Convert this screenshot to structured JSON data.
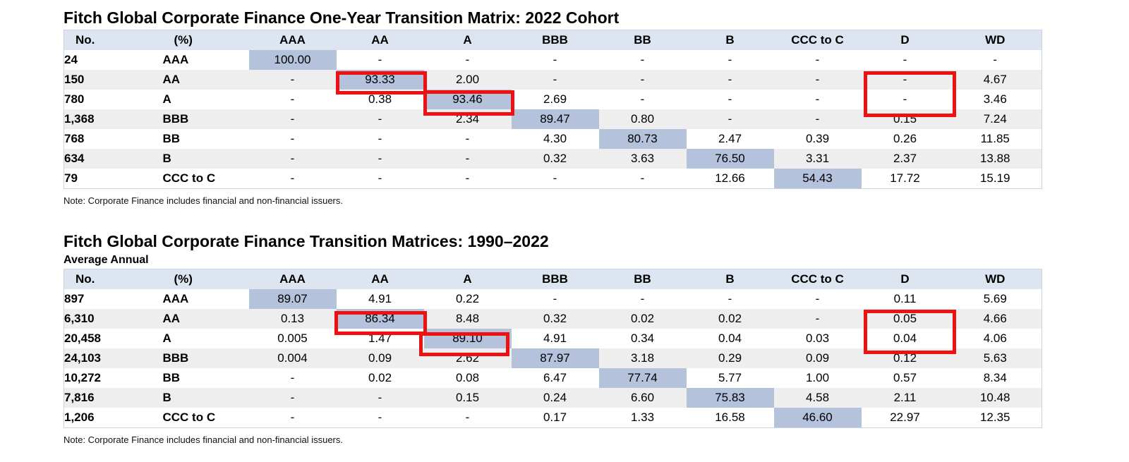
{
  "top": {
    "title": "Fitch Global Corporate Finance One-Year Transition Matrix: 2022 Cohort",
    "headers": [
      "No.",
      "(%)",
      "AAA",
      "AA",
      "A",
      "BBB",
      "BB",
      "B",
      "CCC to C",
      "D",
      "WD"
    ],
    "rows": [
      {
        "count": "24",
        "rating": "AAA",
        "values": [
          "100.00",
          "-",
          "-",
          "-",
          "-",
          "-",
          "-",
          "-",
          "-"
        ]
      },
      {
        "count": "150",
        "rating": "AA",
        "values": [
          "-",
          "93.33",
          "2.00",
          "-",
          "-",
          "-",
          "-",
          "-",
          "4.67"
        ]
      },
      {
        "count": "780",
        "rating": "A",
        "values": [
          "-",
          "0.38",
          "93.46",
          "2.69",
          "-",
          "-",
          "-",
          "-",
          "3.46"
        ]
      },
      {
        "count": "1,368",
        "rating": "BBB",
        "values": [
          "-",
          "-",
          "2.34",
          "89.47",
          "0.80",
          "-",
          "-",
          "0.15",
          "7.24"
        ]
      },
      {
        "count": "768",
        "rating": "BB",
        "values": [
          "-",
          "-",
          "-",
          "4.30",
          "80.73",
          "2.47",
          "0.39",
          "0.26",
          "11.85"
        ]
      },
      {
        "count": "634",
        "rating": "B",
        "values": [
          "-",
          "-",
          "-",
          "0.32",
          "3.63",
          "76.50",
          "3.31",
          "2.37",
          "13.88"
        ]
      },
      {
        "count": "79",
        "rating": "CCC to C",
        "values": [
          "-",
          "-",
          "-",
          "-",
          "-",
          "12.66",
          "54.43",
          "17.72",
          "15.19"
        ]
      }
    ],
    "note": "Note: Corporate Finance includes financial and non-financial issuers."
  },
  "bottom": {
    "title": "Fitch Global Corporate Finance Transition Matrices: 1990–2022",
    "subtitle": "Average Annual",
    "headers": [
      "No.",
      "(%)",
      "AAA",
      "AA",
      "A",
      "BBB",
      "BB",
      "B",
      "CCC to C",
      "D",
      "WD"
    ],
    "rows": [
      {
        "count": "897",
        "rating": "AAA",
        "values": [
          "89.07",
          "4.91",
          "0.22",
          "-",
          "-",
          "-",
          "-",
          "0.11",
          "5.69"
        ]
      },
      {
        "count": "6,310",
        "rating": "AA",
        "values": [
          "0.13",
          "86.34",
          "8.48",
          "0.32",
          "0.02",
          "0.02",
          "-",
          "0.05",
          "4.66"
        ]
      },
      {
        "count": "20,458",
        "rating": "A",
        "values": [
          "0.005",
          "1.47",
          "89.10",
          "4.91",
          "0.34",
          "0.04",
          "0.03",
          "0.04",
          "4.06"
        ]
      },
      {
        "count": "24,103",
        "rating": "BBB",
        "values": [
          "0.004",
          "0.09",
          "2.62",
          "87.97",
          "3.18",
          "0.29",
          "0.09",
          "0.12",
          "5.63"
        ]
      },
      {
        "count": "10,272",
        "rating": "BB",
        "values": [
          "-",
          "0.02",
          "0.08",
          "6.47",
          "77.74",
          "5.77",
          "1.00",
          "0.57",
          "8.34"
        ]
      },
      {
        "count": "7,816",
        "rating": "B",
        "values": [
          "-",
          "-",
          "0.15",
          "0.24",
          "6.60",
          "75.83",
          "4.58",
          "2.11",
          "10.48"
        ]
      },
      {
        "count": "1,206",
        "rating": "CCC to C",
        "values": [
          "-",
          "-",
          "-",
          "0.17",
          "1.33",
          "16.58",
          "46.60",
          "22.97",
          "12.35"
        ]
      }
    ],
    "note": "Note: Corporate Finance includes financial and non-financial issuers."
  },
  "colors": {
    "header_bg": "#dde5f0",
    "diagonal_bg": "#b4c2dc",
    "alt_row_bg": "#eeeeee",
    "highlight_border": "#ee1111"
  }
}
